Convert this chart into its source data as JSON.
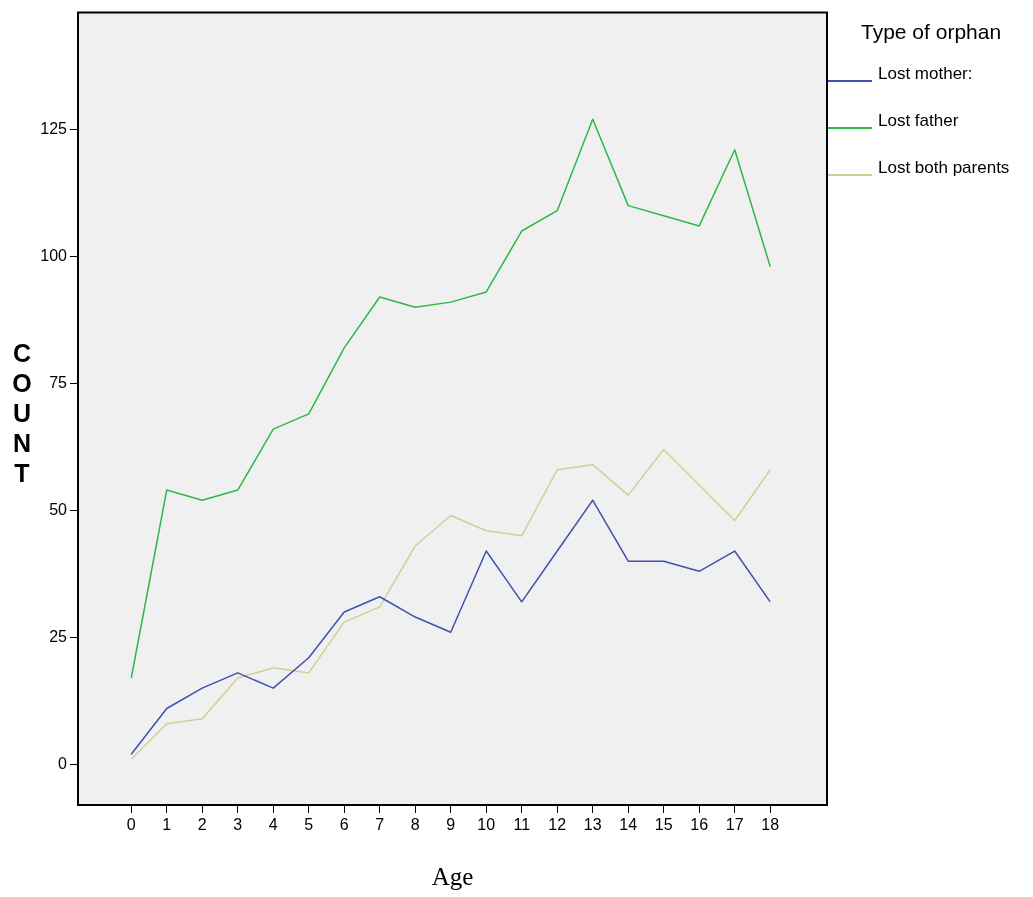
{
  "chart_data": {
    "type": "line",
    "xlabel": "Age",
    "ylabel": "COUNT",
    "legend_title": "Type of orphan",
    "legend": "top right",
    "grid": false,
    "marker": "none",
    "line_style": "solid",
    "x": [
      0,
      1,
      2,
      3,
      4,
      5,
      6,
      7,
      8,
      9,
      10,
      11,
      12,
      13,
      14,
      15,
      16,
      17,
      18
    ],
    "xlim": [
      -1.5,
      19.6
    ],
    "xticks": [
      0,
      1,
      2,
      3,
      4,
      5,
      6,
      7,
      8,
      9,
      10,
      11,
      12,
      13,
      14,
      15,
      16,
      17,
      18
    ],
    "ylim": [
      -8,
      148
    ],
    "yticks": [
      0,
      25,
      50,
      75,
      100,
      125
    ],
    "series": [
      {
        "name": "Lost mother:",
        "color": "#3f51b1",
        "values": [
          2,
          11,
          15,
          18,
          15,
          21,
          30,
          33,
          29,
          26,
          42,
          32,
          42,
          52,
          40,
          40,
          38,
          42,
          32
        ]
      },
      {
        "name": "Lost father",
        "color": "#2eb848",
        "values": [
          17,
          54,
          52,
          54,
          66,
          69,
          82,
          92,
          90,
          91,
          93,
          105,
          109,
          127,
          110,
          108,
          106,
          121,
          98
        ]
      },
      {
        "name": "Lost both parents",
        "color": "#d3ce97",
        "values": [
          1,
          8,
          9,
          17,
          19,
          18,
          28,
          31,
          43,
          49,
          46,
          45,
          58,
          59,
          53,
          62,
          55,
          48,
          58
        ]
      }
    ]
  }
}
